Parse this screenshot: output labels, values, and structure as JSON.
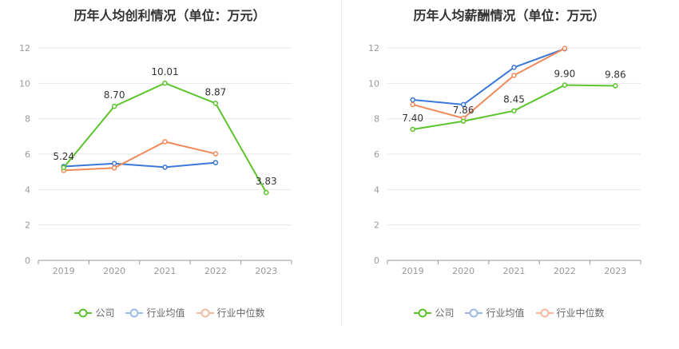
{
  "chart_data": [
    {
      "type": "line",
      "title": "历年人均创利情况（单位：万元）",
      "categories": [
        "2019",
        "2020",
        "2021",
        "2022",
        "2023"
      ],
      "ylim": [
        0,
        12
      ],
      "yticks": [
        "0",
        "2",
        "4",
        "6",
        "8",
        "10",
        "12"
      ],
      "grid": true,
      "legend_position": "bottom",
      "series": [
        {
          "name": "公司",
          "color": "#5bc42c",
          "values": [
            5.24,
            8.7,
            10.01,
            8.87,
            3.83
          ],
          "labels": [
            "5.24",
            "8.70",
            "10.01",
            "8.87",
            "3.83"
          ]
        },
        {
          "name": "行业均值",
          "color": "#3b78d8",
          "values": [
            5.3,
            5.47,
            5.26,
            5.52,
            null
          ]
        },
        {
          "name": "行业中位数",
          "color": "#f08a5a",
          "values": [
            5.08,
            5.22,
            6.7,
            6.02,
            null
          ]
        }
      ]
    },
    {
      "type": "line",
      "title": "历年人均薪酬情况（单位：万元）",
      "categories": [
        "2019",
        "2020",
        "2021",
        "2022",
        "2023"
      ],
      "ylim": [
        0,
        12
      ],
      "yticks": [
        "0",
        "2",
        "4",
        "6",
        "8",
        "10",
        "12"
      ],
      "grid": true,
      "legend_position": "bottom",
      "series": [
        {
          "name": "公司",
          "color": "#5bc42c",
          "values": [
            7.4,
            7.86,
            8.45,
            9.9,
            9.86
          ],
          "labels": [
            "7.40",
            "7.86",
            "8.45",
            "9.90",
            "9.86"
          ]
        },
        {
          "name": "行业均值",
          "color": "#3b78d8",
          "values": [
            9.07,
            8.8,
            10.9,
            11.95,
            null
          ]
        },
        {
          "name": "行业中位数",
          "color": "#f08a5a",
          "values": [
            8.8,
            8.03,
            10.45,
            11.97,
            null
          ]
        }
      ]
    }
  ],
  "legend": {
    "company": "公司",
    "industry_avg": "行业均值",
    "industry_median": "行业中位数"
  }
}
